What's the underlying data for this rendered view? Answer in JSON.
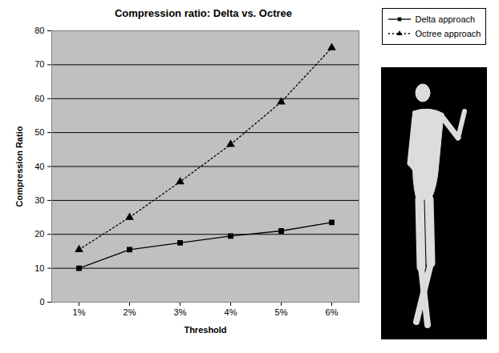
{
  "chart_data": {
    "type": "line",
    "title": "Compression ratio: Delta vs. Octree",
    "xlabel": "Threshold",
    "ylabel": "Compression Ratio",
    "categories": [
      "1%",
      "2%",
      "3%",
      "4%",
      "5%",
      "6%"
    ],
    "series": [
      {
        "name": "Delta approach",
        "color": "#000000",
        "marker": "square",
        "line_style": "solid",
        "values": [
          10,
          15.5,
          17.5,
          19.5,
          21,
          23.5
        ]
      },
      {
        "name": "Octree approach",
        "color": "#000000",
        "marker": "triangle",
        "line_style": "dotted",
        "values": [
          15.5,
          25,
          35.5,
          46.5,
          59,
          75
        ]
      }
    ],
    "ylim": [
      0,
      80
    ],
    "yticks": [
      0,
      10,
      20,
      30,
      40,
      50,
      60,
      70,
      80
    ],
    "grid": true,
    "legend": "right"
  }
}
